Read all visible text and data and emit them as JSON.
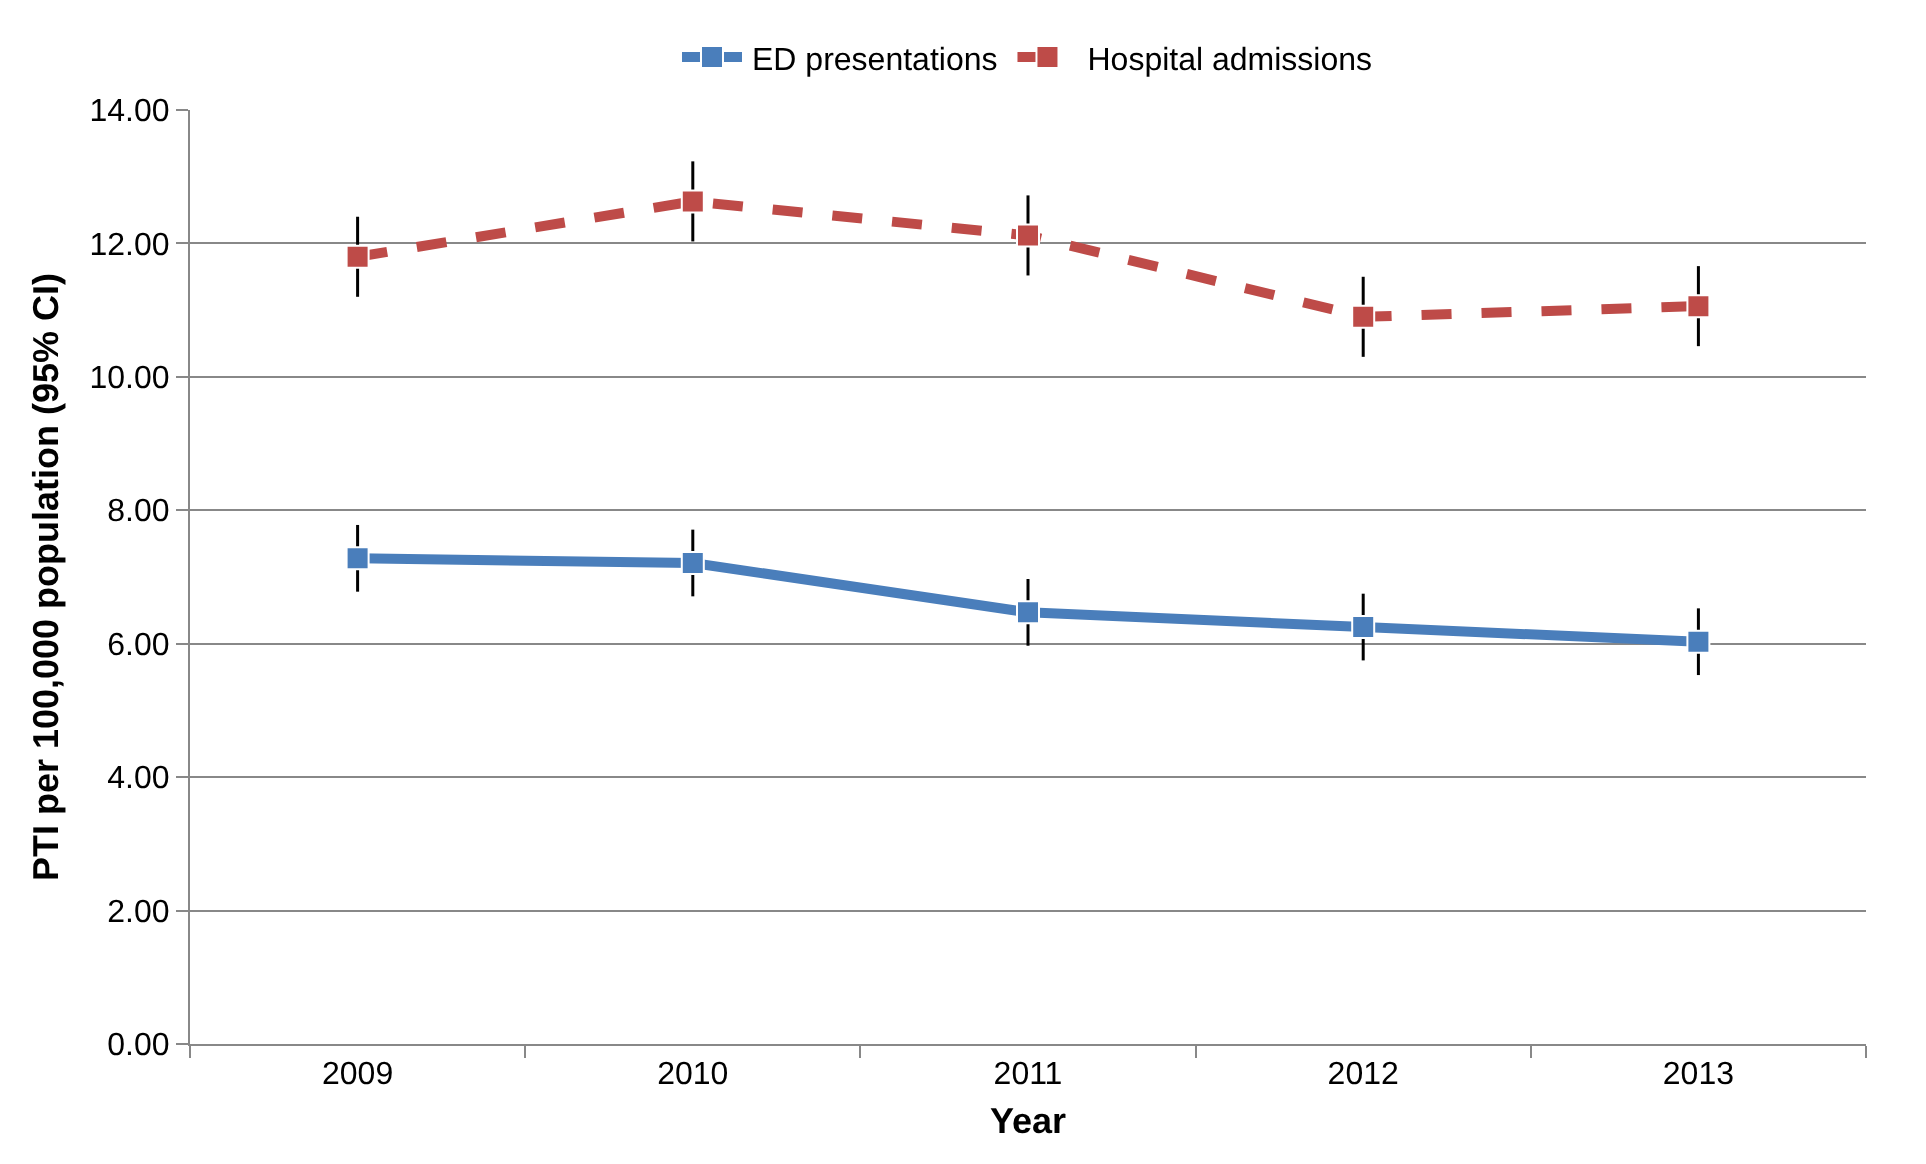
{
  "chart_data": {
    "type": "line",
    "xlabel": "Year",
    "ylabel": "PTI per 100,000 population (95% CI)",
    "categories": [
      "2009",
      "2010",
      "2011",
      "2012",
      "2013"
    ],
    "series": [
      {
        "name": "ED presentations",
        "color": "#4a7ebb",
        "line_style": "solid",
        "values": [
          7.28,
          7.21,
          6.47,
          6.25,
          6.03
        ],
        "errors": [
          0.5,
          0.5,
          0.5,
          0.5,
          0.5
        ]
      },
      {
        "name": "Hospital admissions",
        "color": "#be4b48",
        "line_style": "dashed",
        "values": [
          11.8,
          12.63,
          12.12,
          10.9,
          11.06
        ],
        "errors": [
          0.6,
          0.6,
          0.6,
          0.6,
          0.6
        ]
      }
    ],
    "ylim": [
      0,
      14
    ],
    "yticks": [
      {
        "value": 0,
        "label": "0.00"
      },
      {
        "value": 2,
        "label": "2.00"
      },
      {
        "value": 4,
        "label": "4.00"
      },
      {
        "value": 6,
        "label": "6.00"
      },
      {
        "value": 8,
        "label": "8.00"
      },
      {
        "value": 10,
        "label": "10.00"
      },
      {
        "value": 12,
        "label": "12.00"
      },
      {
        "value": 14,
        "label": "14.00"
      }
    ],
    "grid": "y",
    "legend": "top",
    "marker": "square"
  }
}
